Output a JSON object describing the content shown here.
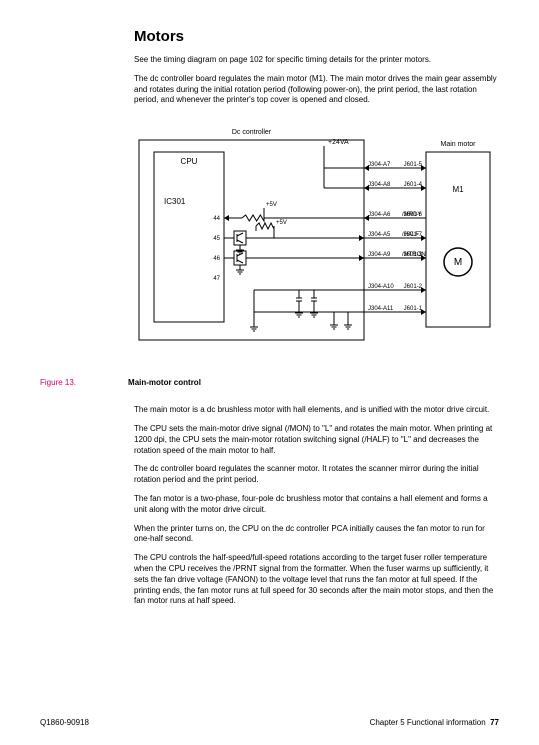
{
  "title": "Motors",
  "intro_1": "See the timing diagram on page 102 for specific timing details for the printer motors.",
  "intro_2": "The dc controller board regulates the main motor (M1). The main motor drives the main gear assembly and rotates during the initial rotation period (following power-on), the print period, the last rotation period, and whenever the printer's top cover is opened and closed.",
  "figure": {
    "number": "Figure 13.",
    "caption": "Main-motor control",
    "colors": {
      "stroke": "#000000",
      "bg": "#ffffff",
      "figlabel": "#d6006f"
    },
    "labels": {
      "dc_controller": "Dc controller",
      "cpu": "CPU",
      "ic": "IC301",
      "v24": "+24VA",
      "v5a": "+5V",
      "v5b": "+5V",
      "main_motor": "Main motor",
      "m1": "M1",
      "m_glyph": "M"
    },
    "cpu_pins": [
      "44",
      "45",
      "46",
      "47"
    ],
    "signals": [
      {
        "left": "J304-A7",
        "mid": "",
        "right": "J601-5"
      },
      {
        "left": "J304-A8",
        "mid": "",
        "right": "J601-4"
      },
      {
        "left": "J304-A6",
        "mid": "/MRDY",
        "right": "J601-6"
      },
      {
        "left": "J304-A5",
        "mid": "/HALF",
        "right": "J601-7"
      },
      {
        "left": "J304-A9",
        "mid": "/MTRON",
        "right": "J601-3"
      },
      {
        "left": "J304-A10",
        "mid": "",
        "right": "J601-2"
      },
      {
        "left": "J304-A11",
        "mid": "",
        "right": "J601-1"
      }
    ]
  },
  "paras": {
    "p1": "The main motor is a dc brushless motor with hall elements, and is unified with the motor drive circuit.",
    "p2": "The CPU sets the main-motor drive signal (/MON) to \"L\" and rotates the main motor. When printing at 1200 dpi, the CPU sets the main-motor rotation switching signal (/HALF) to \"L\" and decreases the rotation speed of the main motor to half.",
    "p3": "The dc controller board regulates the scanner motor. It rotates the scanner mirror during the initial rotation period and the print period.",
    "p4": "The fan motor is a two-phase, four-pole dc brushless motor that contains a hall element and forms a unit along with the motor drive circuit.",
    "p5": "When the printer turns on, the CPU on the dc controller PCA initially causes the fan motor to run for one-half second.",
    "p6": "The CPU controls the half-speed/full-speed rotations according to the target fuser roller temperature when the CPU receives the /PRNT signal from the formatter. When the fuser warms up sufficiently, it sets the fan drive voltage (FANON) to the voltage level that runs the fan motor at full speed. If the printing ends, the fan motor runs at full speed for 30 seconds after the main motor stops, and then the fan motor runs at half speed."
  },
  "footer": {
    "left": "Q1860-90918",
    "chapter": "Chapter 5 Functional information",
    "page": "77"
  }
}
